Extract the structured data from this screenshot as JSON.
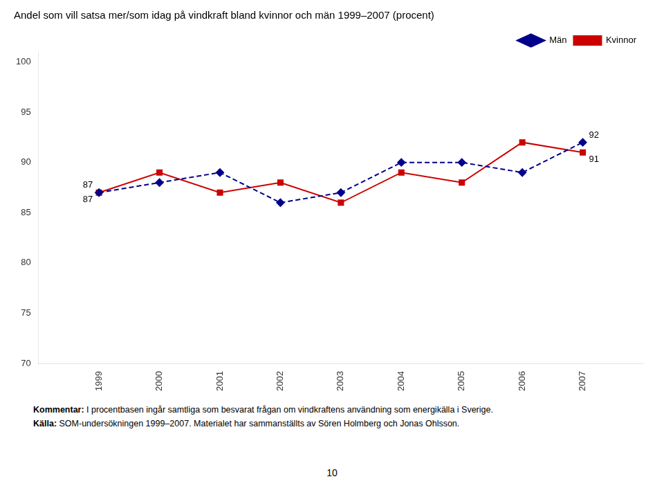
{
  "chart_data": {
    "type": "line",
    "title": "Andel som vill satsa mer/som idag på vindkraft bland kvinnor och män 1999–2007 (procent)",
    "x": [
      1999,
      2000,
      2001,
      2002,
      2003,
      2004,
      2005,
      2006,
      2007
    ],
    "series": [
      {
        "name": "Män",
        "color": "#00008B",
        "marker": "diamond",
        "line_style": "dashed",
        "values": [
          87,
          88,
          89,
          86,
          87,
          90,
          90,
          89,
          92
        ]
      },
      {
        "name": "Kvinnor",
        "color": "#CC0000",
        "marker": "square",
        "line_style": "solid",
        "values": [
          87,
          89,
          87,
          88,
          86,
          89,
          88,
          92,
          91
        ]
      }
    ],
    "xlim": [
      1998,
      2008
    ],
    "xticks": [
      1999,
      2000,
      2001,
      2002,
      2003,
      2004,
      2005,
      2006,
      2007
    ],
    "ylim": [
      70,
      101
    ],
    "yticks": [
      70,
      75,
      80,
      85,
      90,
      95,
      100
    ],
    "grid": false,
    "legend": "upper right",
    "annotations": [
      {
        "text": "87",
        "x": 1999,
        "y": 87,
        "series": "Män"
      },
      {
        "text": "87",
        "x": 1999,
        "y": 87,
        "series": "Kvinnor"
      },
      {
        "text": "92",
        "x": 2007,
        "y": 92,
        "series": "Män"
      },
      {
        "text": "91",
        "x": 2007,
        "y": 91,
        "series": "Kvinnor"
      }
    ],
    "footnotes": [
      {
        "bold": "Kommentar:",
        "text": " I procentbasen ingår samtliga som besvarat frågan om vindkraftens användning som energikälla i Sverige."
      },
      {
        "bold": "Källa:",
        "text": " SOM-undersökningen 1999–2007. Materialet har sammanställts av Sören Holmberg och Jonas Ohlsson."
      }
    ],
    "page_number": "10"
  }
}
